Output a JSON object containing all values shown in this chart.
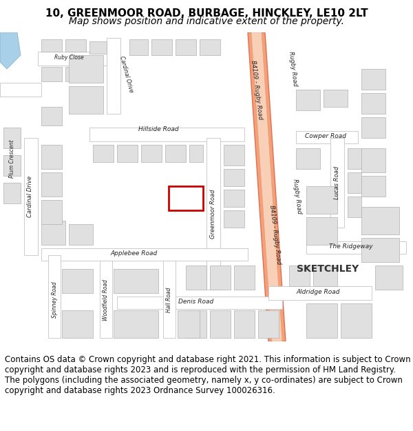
{
  "title_line1": "10, GREENMOOR ROAD, BURBAGE, HINCKLEY, LE10 2LT",
  "title_line2": "Map shows position and indicative extent of the property.",
  "footer_text": "Contains OS data © Crown copyright and database right 2021. This information is subject to Crown copyright and database rights 2023 and is reproduced with the permission of HM Land Registry. The polygons (including the associated geometry, namely x, y co-ordinates) are subject to Crown copyright and database rights 2023 Ordnance Survey 100026316.",
  "bg_color": "#ffffff",
  "highlight_road_color": "#f4a07a",
  "highlight_road_stroke": "#e07050",
  "building_fill": "#e0e0e0",
  "building_stroke": "#b0b0b0",
  "title_fontsize": 11,
  "subtitle_fontsize": 10,
  "footer_fontsize": 8.5
}
